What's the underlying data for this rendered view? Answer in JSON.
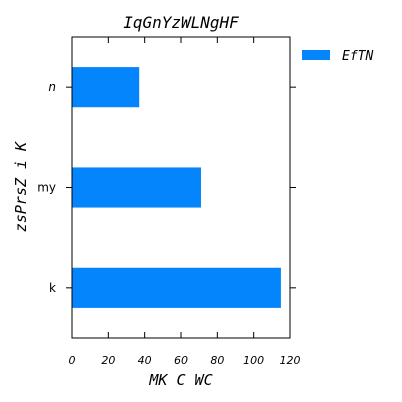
{
  "chart_data": {
    "type": "bar",
    "orientation": "horizontal",
    "title": "IqGnYzWLNgHF",
    "xlabel": "MK C WC",
    "ylabel": "zsPrsZ i K",
    "categories": [
      "k",
      "my",
      "n"
    ],
    "series": [
      {
        "name": "EfTN",
        "values": [
          115,
          71,
          37
        ],
        "color": "#0485fc"
      }
    ],
    "xlim": [
      0,
      120
    ],
    "xticks": [
      0,
      20,
      40,
      60,
      80,
      100,
      120
    ],
    "grid": false,
    "legend_position": "top-right outside"
  }
}
